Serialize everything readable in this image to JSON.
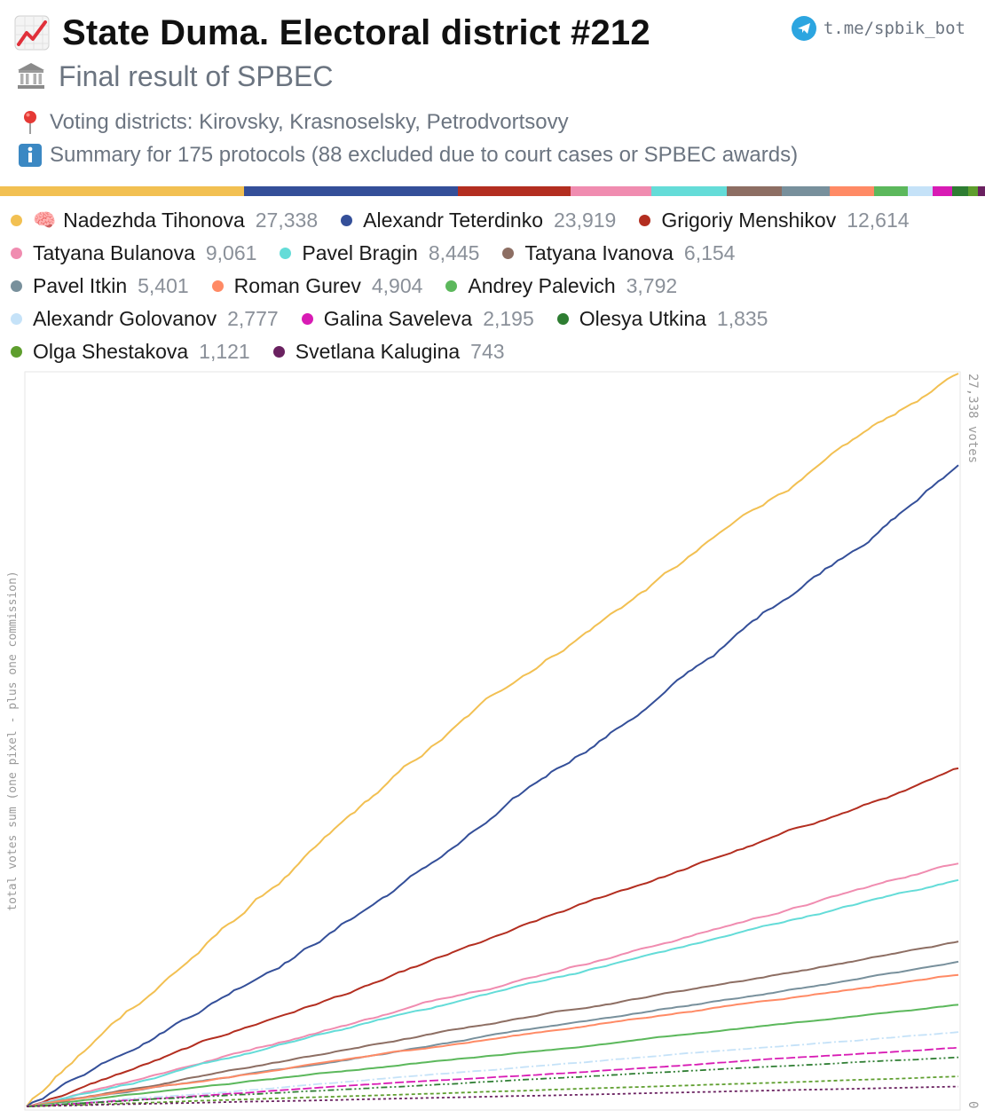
{
  "header": {
    "title": "State Duma. Electoral district #212",
    "subtitle": "Final result of SPBEC",
    "districts": "Voting districts: Kirovsky, Krasnoselsky, Petrodvortsovy",
    "summary": "Summary for 175 protocols (88 excluded due to court cases or SPBEC awards)",
    "telegram": "t.me/spbik_bot",
    "icons": [
      "chart-increasing-icon",
      "classical-building-icon",
      "round-pushpin-icon",
      "information-icon",
      "telegram-icon",
      "brain-icon"
    ]
  },
  "candidates": [
    {
      "name": "Nadezhda Tihonova",
      "value_label": "27,338",
      "votes": 27338,
      "color": "#f2c052",
      "marker": "brain-icon"
    },
    {
      "name": "Alexandr Teterdinko",
      "value_label": "23,919",
      "votes": 23919,
      "color": "#344f99"
    },
    {
      "name": "Grigoriy Menshikov",
      "value_label": "12,614",
      "votes": 12614,
      "color": "#b32e20"
    },
    {
      "name": "Tatyana Bulanova",
      "value_label": "9,061",
      "votes": 9061,
      "color": "#f08cb0"
    },
    {
      "name": "Pavel Bragin",
      "value_label": "8,445",
      "votes": 8445,
      "color": "#64dcd8"
    },
    {
      "name": "Tatyana Ivanova",
      "value_label": "6,154",
      "votes": 6154,
      "color": "#8d6e63"
    },
    {
      "name": "Pavel Itkin",
      "value_label": "5,401",
      "votes": 5401,
      "color": "#78909c"
    },
    {
      "name": "Roman Gurev",
      "value_label": "4,904",
      "votes": 4904,
      "color": "#ff8a65"
    },
    {
      "name": "Andrey Palevich",
      "value_label": "3,792",
      "votes": 3792,
      "color": "#5cb85c"
    },
    {
      "name": "Alexandr Golovanov",
      "value_label": "2,777",
      "votes": 2777,
      "color": "#c5e2f8"
    },
    {
      "name": "Galina Saveleva",
      "value_label": "2,195",
      "votes": 2195,
      "color": "#d81bb4"
    },
    {
      "name": "Olesya Utkina",
      "value_label": "1,835",
      "votes": 1835,
      "color": "#2e7d32"
    },
    {
      "name": "Olga Shestakova",
      "value_label": "1,121",
      "votes": 1121,
      "color": "#5e9e2e"
    },
    {
      "name": "Svetlana Kalugina",
      "value_label": "743",
      "votes": 743,
      "color": "#6a2160"
    }
  ],
  "chart_data": {
    "type": "line",
    "ylabel": "total votes sum (one pixel - plus one commission)",
    "y_top_label": "27,338 votes",
    "y_bottom_label": "0",
    "ylim": [
      0,
      27338
    ],
    "x_label": "",
    "x_points": 175,
    "series": [
      {
        "name": "Nadezhda Tihonova",
        "final": 27338
      },
      {
        "name": "Alexandr Teterdinko",
        "final": 23919
      },
      {
        "name": "Grigoriy Menshikov",
        "final": 12614
      },
      {
        "name": "Tatyana Bulanova",
        "final": 9061
      },
      {
        "name": "Pavel Bragin",
        "final": 8445
      },
      {
        "name": "Tatyana Ivanova",
        "final": 6154
      },
      {
        "name": "Pavel Itkin",
        "final": 5401
      },
      {
        "name": "Roman Gurev",
        "final": 4904
      },
      {
        "name": "Andrey Palevich",
        "final": 3792
      },
      {
        "name": "Alexandr Golovanov",
        "final": 2777
      },
      {
        "name": "Galina Saveleva",
        "final": 2195
      },
      {
        "name": "Olesya Utkina",
        "final": 1835
      },
      {
        "name": "Olga Shestakova",
        "final": 1121
      },
      {
        "name": "Svetlana Kalugina",
        "final": 743
      }
    ]
  }
}
